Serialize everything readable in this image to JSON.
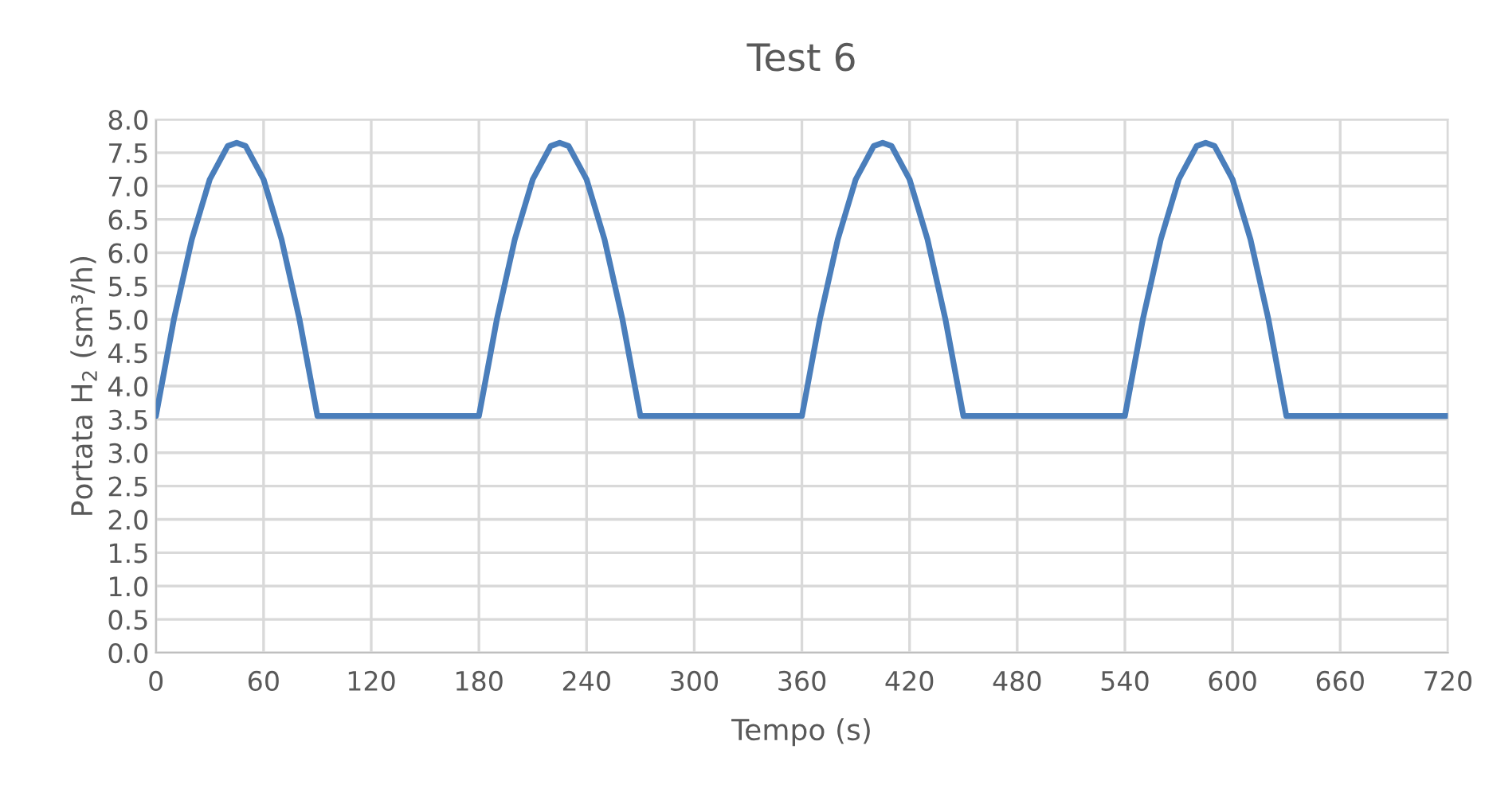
{
  "chart_data": {
    "type": "line",
    "title": "Test 6",
    "xlabel": "Tempo (s)",
    "ylabel": "Portata H$_{2}$ (sm³/h)",
    "x": [
      0,
      10,
      20,
      30,
      40,
      45,
      50,
      60,
      70,
      80,
      90,
      180,
      190,
      200,
      210,
      220,
      225,
      230,
      240,
      250,
      260,
      270,
      360,
      370,
      380,
      390,
      400,
      405,
      410,
      420,
      430,
      440,
      450,
      540,
      550,
      560,
      570,
      580,
      585,
      590,
      600,
      610,
      620,
      630,
      720
    ],
    "series": [
      {
        "color": "#4a7ebb",
        "values": [
          3.55,
          5.0,
          6.2,
          7.1,
          7.6,
          7.65,
          7.6,
          7.1,
          6.2,
          5.0,
          3.55,
          3.55,
          5.0,
          6.2,
          7.1,
          7.6,
          7.65,
          7.6,
          7.1,
          6.2,
          5.0,
          3.55,
          3.55,
          5.0,
          6.2,
          7.1,
          7.6,
          7.65,
          7.6,
          7.1,
          6.2,
          5.0,
          3.55,
          3.55,
          5.0,
          6.2,
          7.1,
          7.6,
          7.65,
          7.6,
          7.1,
          6.2,
          5.0,
          3.55,
          3.55
        ]
      }
    ],
    "xlim": [
      0,
      720
    ],
    "xticks": [
      0,
      60,
      120,
      180,
      240,
      300,
      360,
      420,
      480,
      540,
      600,
      660,
      720
    ],
    "ylim": [
      0,
      8
    ],
    "yticks": [
      {
        "value": 0,
        "label": "0.0"
      },
      {
        "value": 0.5,
        "label": "0.5"
      },
      {
        "value": 1,
        "label": "1.0"
      },
      {
        "value": 1.5,
        "label": "1.5"
      },
      {
        "value": 2,
        "label": "2.0"
      },
      {
        "value": 2.5,
        "label": "2.5"
      },
      {
        "value": 3,
        "label": "3.0"
      },
      {
        "value": 3.5,
        "label": "3.5"
      },
      {
        "value": 4,
        "label": "4.0"
      },
      {
        "value": 4.5,
        "label": "4.5"
      },
      {
        "value": 5,
        "label": "5.0"
      },
      {
        "value": 5.5,
        "label": "5.5"
      },
      {
        "value": 6,
        "label": "6.0"
      },
      {
        "value": 6.5,
        "label": "6.5"
      },
      {
        "value": 7,
        "label": "7.0"
      },
      {
        "value": 7.5,
        "label": "7.5"
      },
      {
        "value": 8,
        "label": "8.0"
      }
    ],
    "grid": true,
    "marker": "none",
    "line_style": "solid",
    "legend": false
  }
}
